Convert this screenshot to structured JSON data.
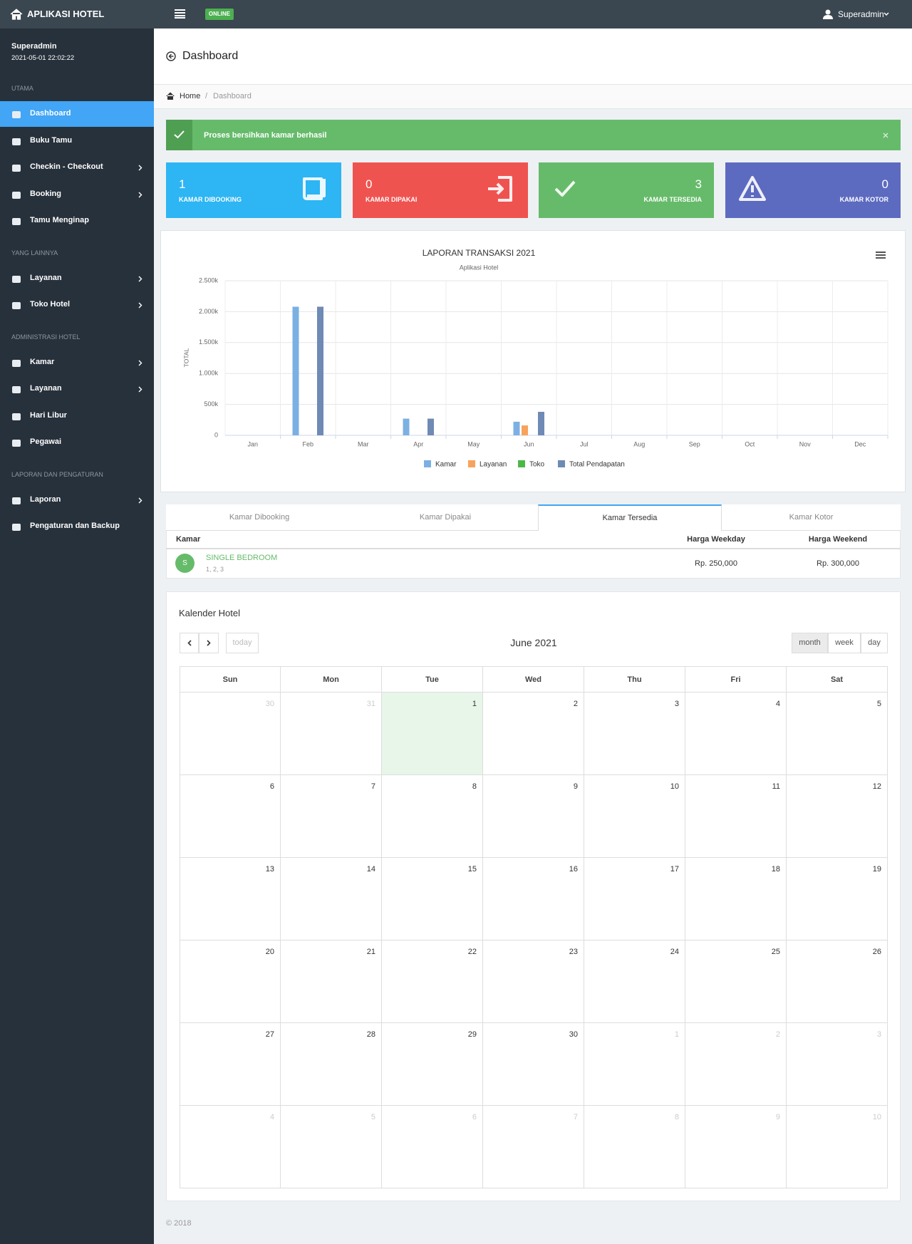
{
  "navbar": {
    "brand": "APLIKASI HOTEL",
    "status": "ONLINE",
    "user": "Superadmin"
  },
  "sidebar": {
    "user": "Superadmin",
    "datetime": "2021-05-01 22:02:22",
    "sections": [
      {
        "title": "UTAMA",
        "items": [
          {
            "label": "Dashboard",
            "active": true
          },
          {
            "label": "Buku Tamu"
          },
          {
            "label": "Checkin - Checkout",
            "submenu": true
          },
          {
            "label": "Booking",
            "submenu": true
          },
          {
            "label": "Tamu Menginap"
          }
        ]
      },
      {
        "title": "YANG LAINNYA",
        "items": [
          {
            "label": "Layanan",
            "submenu": true
          },
          {
            "label": "Toko Hotel",
            "submenu": true
          }
        ]
      },
      {
        "title": "ADMINISTRASI HOTEL",
        "items": [
          {
            "label": "Kamar",
            "submenu": true
          },
          {
            "label": "Layanan",
            "submenu": true
          },
          {
            "label": "Hari Libur"
          },
          {
            "label": "Pegawai"
          }
        ]
      },
      {
        "title": "LAPORAN DAN PENGATURAN",
        "items": [
          {
            "label": "Laporan",
            "submenu": true
          },
          {
            "label": "Pengaturan dan Backup"
          }
        ]
      }
    ]
  },
  "header": {
    "title": "Dashboard"
  },
  "breadcrumb": [
    "Home",
    "Dashboard"
  ],
  "alert": "Proses bersihkan kamar berhasil",
  "stat_boxes": [
    {
      "value": 1,
      "label": "KAMAR DIBOOKING",
      "color": "#2db5f4"
    },
    {
      "value": 0,
      "label": "KAMAR DIPAKAI",
      "color": "#ef5350"
    },
    {
      "value": 3,
      "label": "KAMAR TERSEDIA",
      "color": "#66bb6a"
    },
    {
      "value": 0,
      "label": "KAMAR KOTOR",
      "color": "#5c6bc0"
    }
  ],
  "chart_data": {
    "type": "bar",
    "title": "LAPORAN TRANSAKSI 2021",
    "subtitle": "Aplikasi Hotel",
    "y_label": "TOTAL",
    "categories": [
      "Jan",
      "Feb",
      "Mar",
      "Apr",
      "May",
      "Jun",
      "Jul",
      "Aug",
      "Sep",
      "Oct",
      "Nov",
      "Dec"
    ],
    "series": [
      {
        "name": "Kamar",
        "color": "#7cb0e3",
        "values": [
          0,
          2080000,
          0,
          270000,
          0,
          220000,
          0,
          0,
          0,
          0,
          0,
          0
        ]
      },
      {
        "name": "Layanan",
        "color": "#f7a35c",
        "values": [
          0,
          0,
          0,
          0,
          0,
          160000,
          0,
          0,
          0,
          0,
          0,
          0
        ]
      },
      {
        "name": "Toko",
        "color": "#4cb848",
        "values": [
          0,
          0,
          0,
          0,
          0,
          0,
          0,
          0,
          0,
          0,
          0,
          0
        ]
      },
      {
        "name": "Total Pendapatan",
        "color": "#6f8ab4",
        "values": [
          0,
          2080000,
          0,
          270000,
          0,
          380000,
          0,
          0,
          0,
          0,
          0,
          0
        ]
      }
    ],
    "ylim": [
      0,
      2500000
    ],
    "yticks": [
      0,
      {
        "value": 500000,
        "label": "500k"
      },
      {
        "value": 1000000,
        "label": "1.000k"
      },
      {
        "value": 1500000,
        "label": "1.500k"
      },
      {
        "value": 2000000,
        "label": "2.000k"
      },
      {
        "value": 2500000,
        "label": "2.500k"
      }
    ],
    "grid": true
  },
  "tabs": {
    "items": [
      "Kamar Dibooking",
      "Kamar Dipakai",
      "Kamar Tersedia",
      "Kamar Kotor"
    ],
    "active": 2
  },
  "room_table": {
    "columns": [
      "Kamar",
      "Harga Weekday",
      "Harga Weekend"
    ],
    "rows": [
      {
        "initial": "S",
        "name": "SINGLE BEDROOM",
        "rooms": "1, 2, 3",
        "weekday": "Rp. 250,000",
        "weekend": "Rp. 300,000"
      }
    ]
  },
  "calendar": {
    "title": "Kalender Hotel",
    "today": "today",
    "month": "June 2021",
    "views": [
      "month",
      "week",
      "day"
    ],
    "active_view": 0,
    "weekdays": [
      "Sun",
      "Mon",
      "Tue",
      "Wed",
      "Thu",
      "Fri",
      "Sat"
    ],
    "weeks": [
      [
        30,
        31,
        1,
        2,
        3,
        4,
        5
      ],
      [
        6,
        7,
        8,
        9,
        10,
        11,
        12
      ],
      [
        13,
        14,
        15,
        16,
        17,
        18,
        19
      ],
      [
        20,
        21,
        22,
        23,
        24,
        25,
        26
      ],
      [
        27,
        28,
        29,
        30,
        1,
        2,
        3
      ],
      [
        4,
        5,
        6,
        7,
        8,
        9,
        10
      ]
    ]
  },
  "footer": "© 2018"
}
